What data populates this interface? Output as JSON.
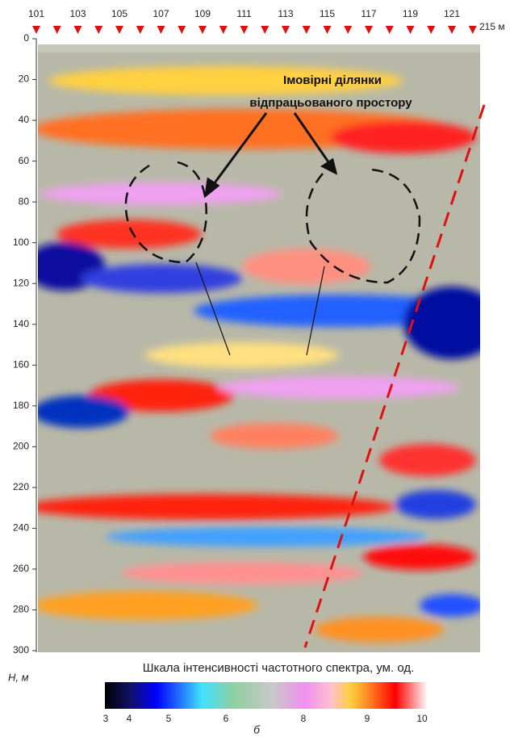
{
  "top_axis": {
    "labels": [
      "101",
      "103",
      "105",
      "107",
      "109",
      "111",
      "113",
      "115",
      "117",
      "119",
      "121"
    ],
    "end_label": "215 м"
  },
  "depth_axis": {
    "ticks": [
      0,
      20,
      40,
      60,
      80,
      100,
      120,
      140,
      160,
      180,
      200,
      220,
      240,
      260,
      280,
      300
    ],
    "label": "H, м"
  },
  "annotation": {
    "lines": [
      "Імовірні ділянки",
      "відпрацьованого простору"
    ]
  },
  "colorbar": {
    "title": "Шкала інтенсивності частотного спектра, ум. од.",
    "ticks": [
      3,
      4,
      5,
      6,
      8,
      9,
      10
    ]
  },
  "caption": "б"
}
